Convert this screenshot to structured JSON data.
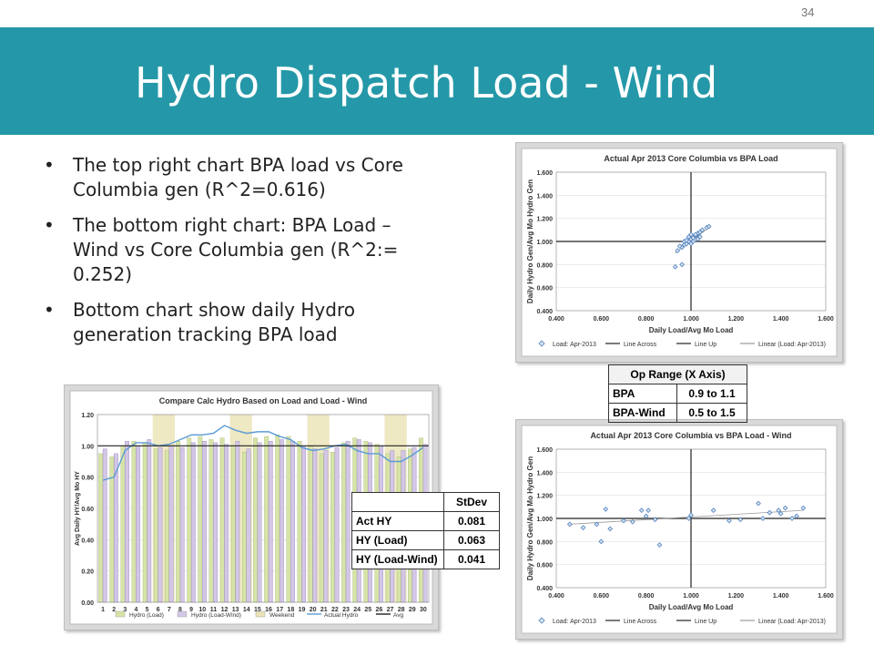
{
  "slide_number": "34",
  "title": "Hydro Dispatch Load - Wind",
  "bullets": [
    "The top right chart BPA load vs Core Columbia gen (R^2=0.616)",
    "The bottom right chart: BPA Load – Wind vs Core Columbia gen (R^2:= 0.252)",
    "Bottom chart show daily Hydro generation tracking BPA load"
  ],
  "op_range": {
    "header": "Op Range (X Axis)",
    "rows": [
      [
        "BPA",
        "0.9 to 1.1"
      ],
      [
        "BPA-Wind",
        "0.5 to 1.5"
      ]
    ]
  },
  "stdev_table": {
    "header": "StDev",
    "rows": [
      [
        "Act HY",
        "0.081"
      ],
      [
        "HY (Load)",
        "0.063"
      ],
      [
        "HY (Load-Wind)",
        "0.041"
      ]
    ]
  },
  "colors": {
    "title_bar": "#2498a8",
    "point": "#4f81bd",
    "hydro_load": "#d7e4a8",
    "hydro_load_wind": "#d3c6e6",
    "weekend": "#ebe4b8",
    "actual": "#5b9bd5",
    "avg": "#222222"
  },
  "chart_data": [
    {
      "type": "scatter",
      "title": "Actual Apr 2013 Core Columbia vs BPA Load",
      "xlabel": "Daily Load/Avg Mo Load",
      "ylabel": "Daily Hydro Gen/Avg Mo Hydro Gen",
      "xlim": [
        0.4,
        1.6
      ],
      "ylim": [
        0.4,
        1.6
      ],
      "xticks": [
        "0.400",
        "0.600",
        "0.800",
        "1.000",
        "1.200",
        "1.400",
        "1.600"
      ],
      "yticks": [
        "0.400",
        "0.600",
        "0.800",
        "1.000",
        "1.200",
        "1.400",
        "1.600"
      ],
      "legend": [
        "Load: Apr-2013",
        "Line Across",
        "Line Up",
        "Linear (Load: Apr-2013)"
      ],
      "points": [
        [
          0.93,
          0.78
        ],
        [
          0.96,
          0.8
        ],
        [
          0.94,
          0.92
        ],
        [
          0.96,
          0.95
        ],
        [
          0.97,
          0.97
        ],
        [
          0.98,
          0.98
        ],
        [
          0.99,
          1.0
        ],
        [
          1.0,
          1.02
        ],
        [
          1.01,
          1.03
        ],
        [
          1.02,
          1.05
        ],
        [
          1.03,
          1.07
        ],
        [
          1.04,
          1.08
        ],
        [
          1.05,
          1.1
        ],
        [
          1.07,
          1.12
        ],
        [
          1.08,
          1.13
        ],
        [
          0.97,
          1.0
        ],
        [
          0.99,
          1.04
        ],
        [
          1.0,
          0.98
        ],
        [
          1.01,
          1.0
        ],
        [
          1.02,
          1.06
        ],
        [
          1.03,
          1.02
        ],
        [
          0.98,
          1.01
        ],
        [
          1.0,
          1.06
        ],
        [
          1.04,
          1.04
        ],
        [
          0.95,
          0.96
        ]
      ],
      "trend": [
        [
          0.93,
          0.9
        ],
        [
          1.08,
          1.12
        ]
      ]
    },
    {
      "type": "scatter",
      "title": "Actual Apr 2013 Core Columbia vs BPA Load - Wind",
      "xlabel": "Daily Load/Avg Mo Load",
      "ylabel": "Daily Hydro Gen/Avg Mo Hydro Gen",
      "xlim": [
        0.4,
        1.6
      ],
      "ylim": [
        0.4,
        1.6
      ],
      "xticks": [
        "0.400",
        "0.600",
        "0.800",
        "1.000",
        "1.200",
        "1.400",
        "1.600"
      ],
      "yticks": [
        "0.400",
        "0.600",
        "0.800",
        "1.000",
        "1.200",
        "1.400",
        "1.600"
      ],
      "legend": [
        "Load: Apr-2013",
        "Line Across",
        "Line Up",
        "Linear (Load: Apr-2013)"
      ],
      "points": [
        [
          0.46,
          0.95
        ],
        [
          0.52,
          0.92
        ],
        [
          0.58,
          0.95
        ],
        [
          0.6,
          0.8
        ],
        [
          0.62,
          1.08
        ],
        [
          0.64,
          0.91
        ],
        [
          0.7,
          0.98
        ],
        [
          0.74,
          0.97
        ],
        [
          0.78,
          1.07
        ],
        [
          0.8,
          1.02
        ],
        [
          0.81,
          1.07
        ],
        [
          0.84,
          0.99
        ],
        [
          0.86,
          0.77
        ],
        [
          0.99,
          1.0
        ],
        [
          1.0,
          1.03
        ],
        [
          1.1,
          1.07
        ],
        [
          1.17,
          0.98
        ],
        [
          1.22,
          0.99
        ],
        [
          1.3,
          1.13
        ],
        [
          1.32,
          1.0
        ],
        [
          1.35,
          1.05
        ],
        [
          1.39,
          1.07
        ],
        [
          1.4,
          1.04
        ],
        [
          1.42,
          1.09
        ],
        [
          1.45,
          1.0
        ],
        [
          1.47,
          1.02
        ],
        [
          1.5,
          1.09
        ]
      ],
      "trend": [
        [
          0.46,
          0.95
        ],
        [
          1.5,
          1.07
        ]
      ]
    },
    {
      "type": "bar",
      "title": "Compare Calc Hydro Based on Load and Load - Wind",
      "ylabel": "Avg Daily HY/Avg Mo HY",
      "ylim": [
        0,
        1.2
      ],
      "yticks": [
        "0.00",
        "0.20",
        "0.40",
        "0.60",
        "0.80",
        "1.00",
        "1.20"
      ],
      "categories": [
        "1",
        "2",
        "3",
        "4",
        "5",
        "6",
        "7",
        "8",
        "9",
        "10",
        "11",
        "12",
        "13",
        "14",
        "15",
        "16",
        "17",
        "18",
        "19",
        "20",
        "21",
        "22",
        "23",
        "24",
        "25",
        "26",
        "27",
        "28",
        "29",
        "30"
      ],
      "weekend_days": [
        6,
        7,
        13,
        14,
        20,
        21,
        27,
        28
      ],
      "legend": [
        "Hydro (Load)",
        "Hydro (Load-Wind)",
        "Weekend",
        "Actual Hydro",
        "Avg"
      ],
      "series": [
        {
          "name": "Hydro (Load)",
          "values": [
            0.95,
            0.93,
            1.0,
            1.03,
            1.02,
            0.98,
            0.97,
            1.03,
            1.05,
            1.06,
            1.04,
            1.05,
            1.0,
            0.96,
            1.05,
            1.06,
            1.07,
            1.06,
            1.03,
            1.0,
            0.95,
            0.96,
            1.02,
            1.05,
            1.03,
            1.01,
            0.95,
            0.93,
            0.98,
            1.05
          ]
        },
        {
          "name": "Hydro (Load-Wind)",
          "values": [
            0.98,
            0.95,
            1.03,
            1.0,
            1.04,
            0.99,
            1.0,
            0.99,
            1.02,
            1.03,
            1.02,
            1.01,
            1.03,
            0.98,
            1.02,
            1.03,
            1.04,
            1.03,
            1.0,
            0.98,
            0.97,
            0.99,
            1.03,
            1.04,
            1.02,
            1.0,
            0.97,
            0.97,
            0.99,
            1.01
          ]
        },
        {
          "name": "Actual Hydro",
          "values": [
            0.78,
            0.8,
            0.97,
            1.02,
            1.02,
            1.0,
            1.01,
            1.04,
            1.07,
            1.07,
            1.08,
            1.13,
            1.1,
            1.08,
            1.09,
            1.09,
            1.06,
            1.04,
            0.99,
            0.97,
            0.98,
            1.0,
            1.01,
            0.97,
            0.95,
            0.95,
            0.9,
            0.9,
            0.94,
            0.99
          ]
        },
        {
          "name": "Avg",
          "values": [
            1,
            1,
            1,
            1,
            1,
            1,
            1,
            1,
            1,
            1,
            1,
            1,
            1,
            1,
            1,
            1,
            1,
            1,
            1,
            1,
            1,
            1,
            1,
            1,
            1,
            1,
            1,
            1,
            1,
            1
          ]
        }
      ]
    }
  ]
}
